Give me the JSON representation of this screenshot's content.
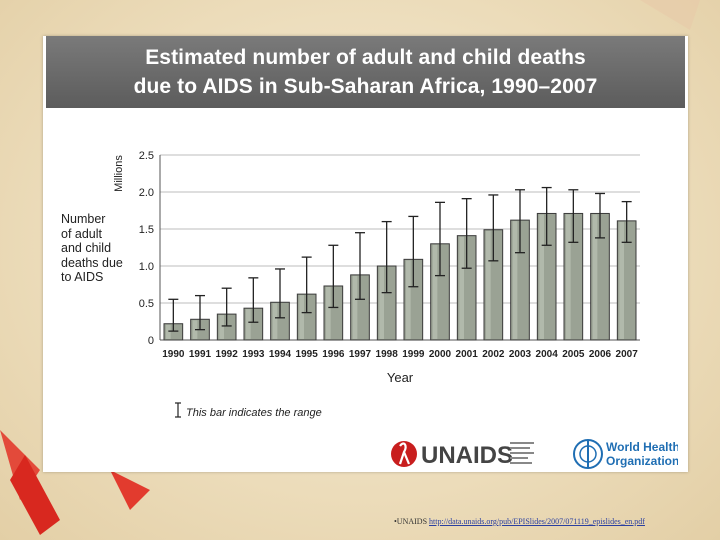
{
  "slide": {
    "title_line1": "Estimated number of adult and child deaths",
    "title_line2": "due to AIDS in Sub-Saharan Africa, 1990–2007",
    "y_side_label_lines": [
      "Number",
      "of adult",
      "and child",
      "deaths due",
      "to AIDS"
    ],
    "legend_text": "This bar indicates the range",
    "footnote_prefix": "•UNAIDS",
    "footnote_url": "http://data.unaids.org/pub/EPISlides/2007/071119_epislides_en.pdf",
    "logos": {
      "unaids_text": "UNAIDS",
      "who_line1": "World Health",
      "who_line2": "Organization"
    },
    "colors": {
      "title_bar": "#666666",
      "bar_fill": "#9aa294",
      "bar_stroke": "#3a3a3a",
      "unaids_red": "#c81e1e",
      "who_blue": "#1f6eb3"
    }
  },
  "chart_data": {
    "type": "bar",
    "title": "Estimated number of adult and child deaths due to AIDS in Sub-Saharan Africa, 1990–2007",
    "xlabel": "Year",
    "ylabel": "Millions",
    "ylim": [
      0,
      2.5
    ],
    "yticks": [
      "0",
      "0.5",
      "1.0",
      "1.5",
      "2.0",
      "2.5"
    ],
    "grid": true,
    "categories": [
      "1990",
      "1991",
      "1992",
      "1993",
      "1994",
      "1995",
      "1996",
      "1997",
      "1998",
      "1999",
      "2000",
      "2001",
      "2002",
      "2003",
      "2004",
      "2005",
      "2006",
      "2007"
    ],
    "values": [
      0.22,
      0.28,
      0.35,
      0.43,
      0.51,
      0.62,
      0.73,
      0.88,
      1.0,
      1.09,
      1.3,
      1.41,
      1.49,
      1.62,
      1.71,
      1.71,
      1.71,
      1.61
    ],
    "range_low": [
      0.12,
      0.14,
      0.19,
      0.24,
      0.3,
      0.37,
      0.44,
      0.55,
      0.64,
      0.72,
      0.87,
      0.97,
      1.07,
      1.18,
      1.28,
      1.32,
      1.38,
      1.32
    ],
    "range_high": [
      0.55,
      0.6,
      0.7,
      0.84,
      0.96,
      1.12,
      1.28,
      1.45,
      1.6,
      1.67,
      1.86,
      1.91,
      1.96,
      2.03,
      2.06,
      2.03,
      1.98,
      1.87
    ]
  }
}
